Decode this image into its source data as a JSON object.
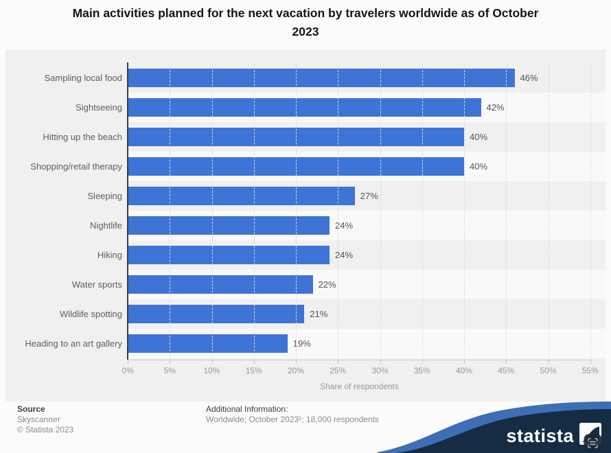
{
  "title": {
    "line1": "Main activities planned for the next vacation by travelers worldwide as of October",
    "line2": "2023"
  },
  "chart_data": {
    "type": "bar",
    "orientation": "horizontal",
    "title": "Main activities planned for the next vacation by travelers worldwide as of October 2023",
    "categories": [
      "Sampling local food",
      "Sightseeing",
      "Hitting up the beach",
      "Shopping/retail therapy",
      "Sleeping",
      "Nightlife",
      "Hiking",
      "Water sports",
      "Wildlife spotting",
      "Heading to an art gallery"
    ],
    "values": [
      46,
      42,
      40,
      40,
      27,
      24,
      24,
      22,
      21,
      19
    ],
    "value_labels": [
      "46%",
      "42%",
      "40%",
      "40%",
      "27%",
      "24%",
      "24%",
      "22%",
      "21%",
      "19%"
    ],
    "xlabel": "Share of respondents",
    "ylabel": "",
    "xlim": [
      0,
      55
    ],
    "xtick_step": 5,
    "xtick_labels": [
      "0%",
      "5%",
      "10%",
      "15%",
      "20%",
      "25%",
      "30%",
      "35%",
      "40%",
      "45%",
      "50%",
      "55%"
    ],
    "grid": true,
    "legend": false,
    "bar_color": "#3e74d5",
    "plot_bg": "#f0f0f1",
    "band_alt_bg": "#f9f9fa"
  },
  "footer": {
    "source_label": "Source",
    "source_line1": "Skyscanner",
    "source_line2": "© Statista 2023",
    "additional_label": "Additional Information:",
    "additional_text": "Worldwide; October 2023¹; 18,000 respondents"
  },
  "branding": {
    "logo_text": "statista",
    "navy": "#152c42",
    "ribbon_blue": "#3e6eb5"
  }
}
